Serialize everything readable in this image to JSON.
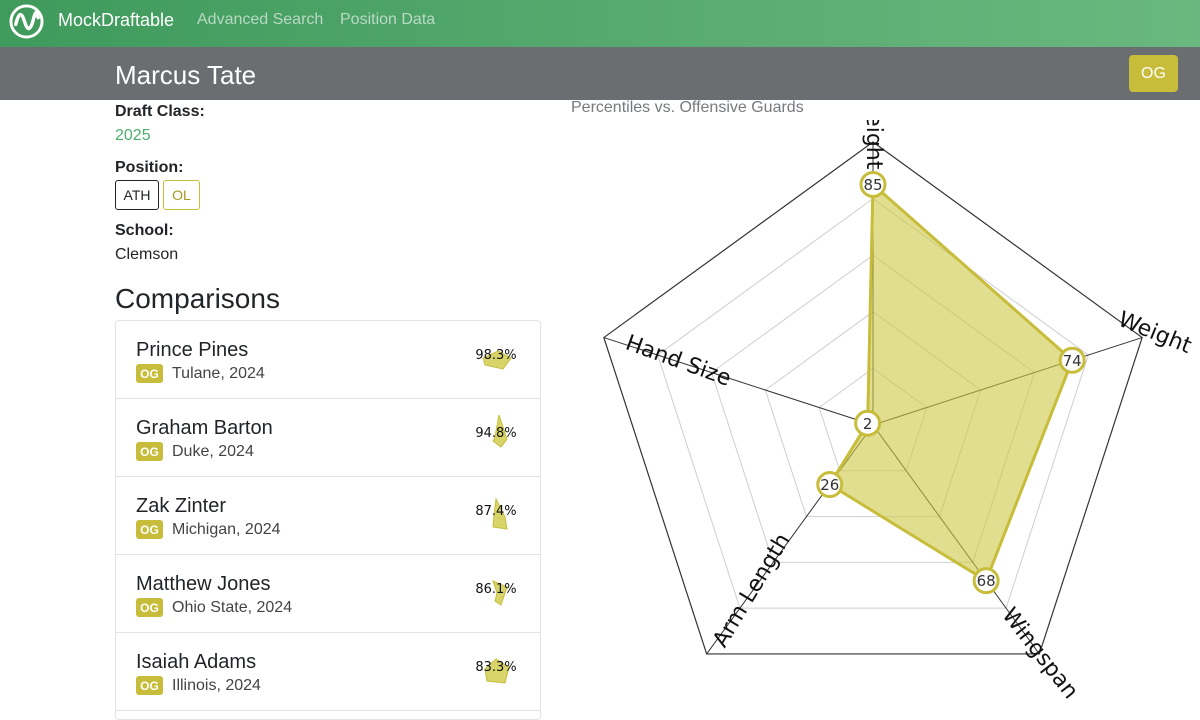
{
  "navbar": {
    "brand": "MockDraftable",
    "links": [
      "Advanced Search",
      "Position Data"
    ],
    "logo_icon": "sine-wave-logo-icon"
  },
  "player": {
    "name": "Marcus Tate",
    "position_badge": "OG",
    "draft_class_label": "Draft Class:",
    "draft_class": "2025",
    "position_label": "Position:",
    "positions": [
      "ATH",
      "OL"
    ],
    "school_label": "School:",
    "school": "Clemson"
  },
  "comparisons": {
    "title": "Comparisons",
    "items": [
      {
        "name": "Prince Pines",
        "pos": "OG",
        "meta": "Tulane, 2024",
        "pct": "98.3%"
      },
      {
        "name": "Graham Barton",
        "pos": "OG",
        "meta": "Duke, 2024",
        "pct": "94.8%"
      },
      {
        "name": "Zak Zinter",
        "pos": "OG",
        "meta": "Michigan, 2024",
        "pct": "87.4%"
      },
      {
        "name": "Matthew Jones",
        "pos": "OG",
        "meta": "Ohio State, 2024",
        "pct": "86.1%"
      },
      {
        "name": "Isaiah Adams",
        "pos": "OG",
        "meta": "Illinois, 2024",
        "pct": "83.3%"
      }
    ]
  },
  "colors": {
    "navbar_green": "#4fa367",
    "accent_gold": "#c7bd3a",
    "radar_fill": "#d8d46a",
    "header_gray": "#6b6e70"
  },
  "chart_data": {
    "type": "radar",
    "title": "Percentiles vs. Offensive Guards",
    "axes": [
      "Height",
      "Weight",
      "Wingspan",
      "Arm Length",
      "Hand Size"
    ],
    "values": [
      85,
      74,
      68,
      26,
      2
    ],
    "range": [
      0,
      100
    ]
  }
}
